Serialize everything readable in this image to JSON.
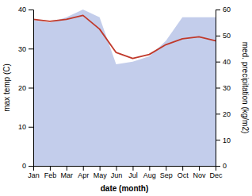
{
  "chart_data": {
    "type": "line",
    "categories": [
      "Jan",
      "Feb",
      "Mar",
      "Apr",
      "May",
      "Jun",
      "Jul",
      "Aug",
      "Sep",
      "Oct",
      "Nov",
      "Dec"
    ],
    "xlabel": "date (month)",
    "ylabel": "max temp (C)",
    "y2label": "med. precipitation (kg/m2)",
    "ylim": [
      0,
      40
    ],
    "yticks": [
      0,
      10,
      20,
      30,
      40
    ],
    "y2lim": [
      0,
      60
    ],
    "y2ticks": [
      0,
      10,
      20,
      30,
      40,
      50,
      60
    ],
    "series": [
      {
        "type": "area",
        "axis": "y2",
        "color": "#b8c4e8",
        "values": [
          56,
          55,
          57,
          60,
          57,
          39,
          40,
          42,
          48,
          57,
          57,
          57
        ]
      },
      {
        "type": "line",
        "color": "#c0392b",
        "values": [
          37.5,
          37.0,
          37.5,
          38.5,
          35.0,
          29.0,
          27.5,
          28.5,
          31.0,
          32.5,
          33.0,
          32.0
        ]
      }
    ]
  }
}
